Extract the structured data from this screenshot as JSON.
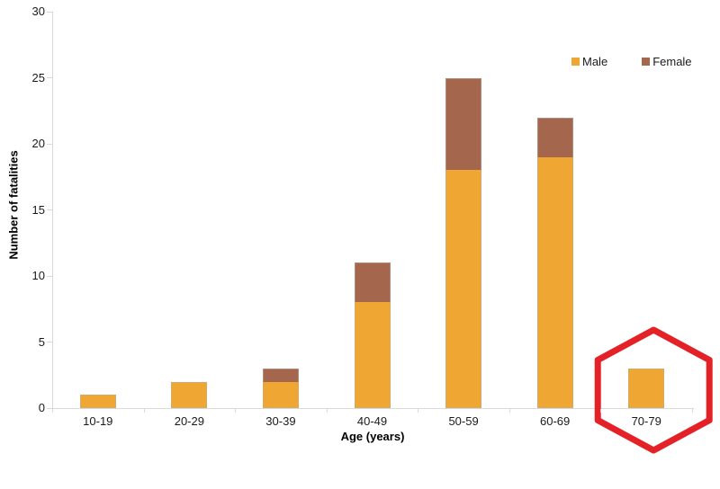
{
  "chart_data": {
    "type": "bar",
    "variant": "stacked-column",
    "title": "",
    "categories": [
      "10-19",
      "20-29",
      "30-39",
      "40-49",
      "50-59",
      "60-69",
      "70-79"
    ],
    "series": [
      {
        "name": "Male",
        "color": "#F0A633",
        "values": [
          1,
          2,
          2,
          8,
          18,
          19,
          3
        ]
      },
      {
        "name": "Female",
        "color": "#A5664E",
        "values": [
          0,
          0,
          1,
          3,
          7,
          3,
          0
        ]
      }
    ],
    "totals": [
      1,
      2,
      3,
      11,
      25,
      22,
      3
    ],
    "xlabel": "Age (years)",
    "ylabel": "Number of fatalities",
    "ylim": [
      0,
      30
    ],
    "ytick_step": 5,
    "ytick_labels": [
      "0",
      "5",
      "10",
      "15",
      "20",
      "25",
      "30"
    ],
    "grid": false,
    "legend_position": "top-right",
    "axis_color": "#D9D9D9",
    "text_color": "#1A1A1A",
    "annotation": {
      "shape": "hexagon-outline",
      "highlighted_category": "70-79",
      "color": "#E32126",
      "stroke_width": 7
    }
  }
}
